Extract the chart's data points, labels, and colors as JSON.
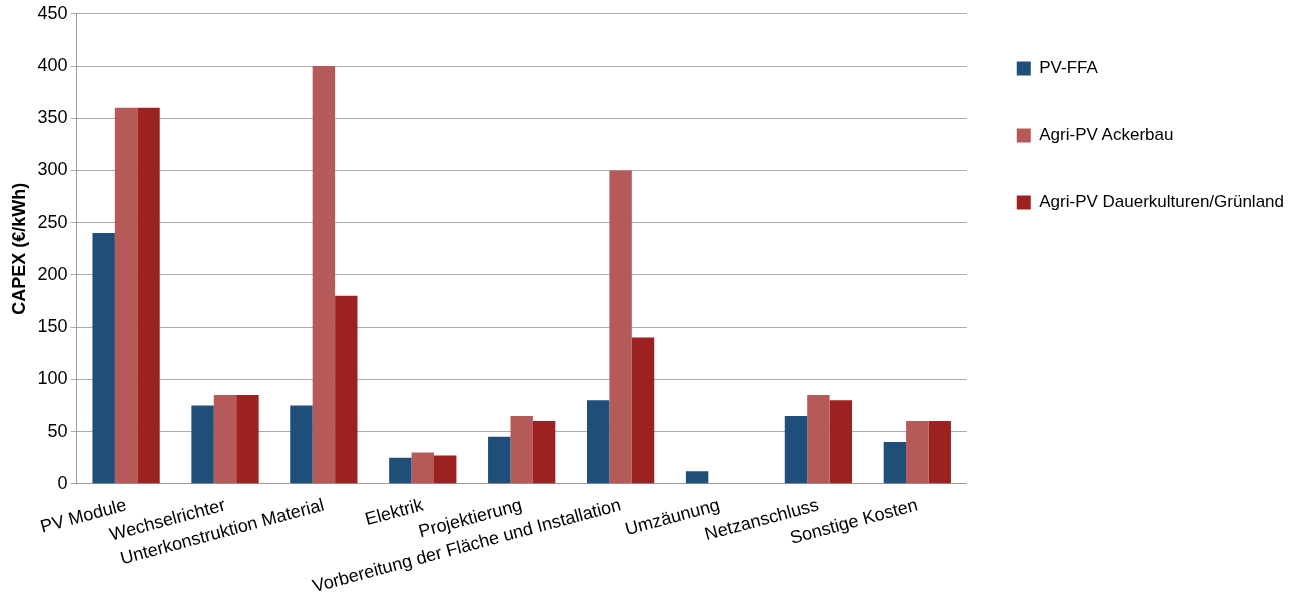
{
  "chart_data": {
    "type": "bar",
    "ylabel": "CAPEX (€/kWh)",
    "categories": [
      "PV Module",
      "Wechselrichter",
      "Unterkonstruktion Material",
      "Elektrik",
      "Projektierung",
      "Vorbereitung der Fläche und Installation",
      "Umzäunung",
      "Netzanschluss",
      "Sonstige Kosten"
    ],
    "series": [
      {
        "name": "PV-FFA",
        "color": "#1f4e79",
        "values": [
          240,
          75,
          75,
          25,
          45,
          80,
          12,
          65,
          40
        ]
      },
      {
        "name": "Agri-PV Ackerbau",
        "color": "#b65a59",
        "values": [
          360,
          85,
          400,
          30,
          65,
          300,
          null,
          85,
          60
        ]
      },
      {
        "name": "Agri-PV Dauerkulturen/Grünland",
        "color": "#9c2222",
        "values": [
          360,
          85,
          180,
          27,
          60,
          140,
          null,
          80,
          60
        ]
      }
    ],
    "ylim": [
      0,
      450
    ],
    "yticks": [
      0,
      50,
      100,
      150,
      200,
      250,
      300,
      350,
      400,
      450
    ],
    "grid": "y",
    "legend": "right"
  }
}
